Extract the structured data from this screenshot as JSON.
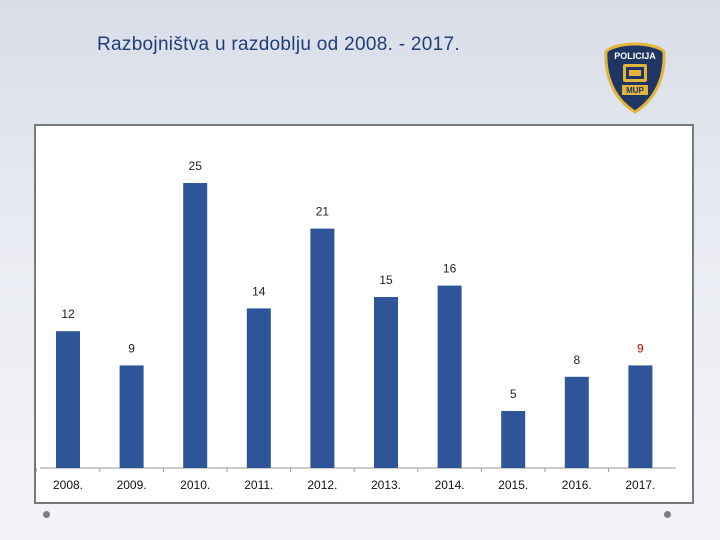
{
  "title": "Razbojništva u razdoblju od 2008. - 2017.",
  "badge": {
    "text_top": "POLICIJA",
    "text_bottom": "MUP",
    "colors": {
      "navy": "#1f3564",
      "gold": "#e2b43a"
    }
  },
  "icons": [
    "police-badge-icon",
    "bullet-dot-icon"
  ],
  "colors": {
    "bar": "#2e5597",
    "highlight_label": "#c00000",
    "label": "#222222",
    "title": "#1f3e78"
  },
  "chart_data": {
    "type": "bar",
    "categories": [
      "2008.",
      "2009.",
      "2010.",
      "2011.",
      "2012.",
      "2013.",
      "2014.",
      "2015.",
      "2016.",
      "2017."
    ],
    "values": [
      12,
      9,
      25,
      14,
      21,
      15,
      16,
      5,
      8,
      9
    ],
    "title": "",
    "xlabel": "",
    "ylabel": "",
    "ylim": [
      0,
      27
    ],
    "grid": false,
    "legend": "none",
    "highlight_index": 9
  }
}
